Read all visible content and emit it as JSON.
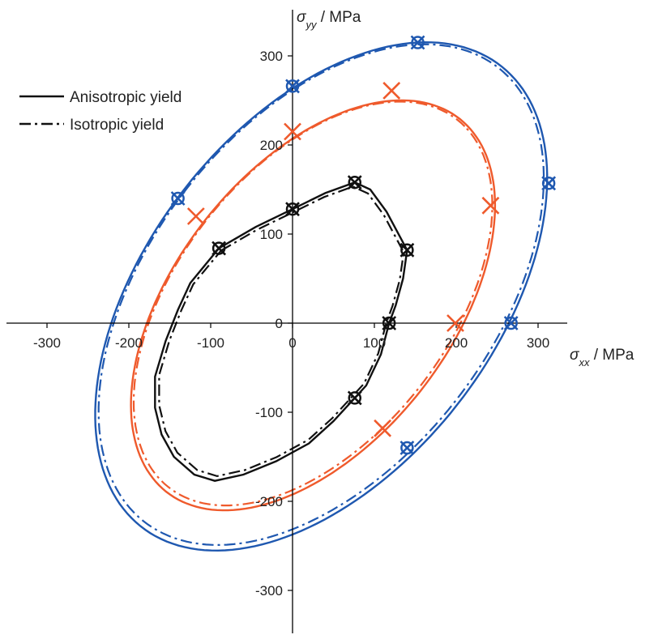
{
  "chart_data": {
    "type": "line",
    "x_axis": {
      "label_symbol": "σ",
      "label_subscript": "xx",
      "label_unit": " / MPa",
      "range": [
        -350,
        350
      ],
      "ticks": [
        -300,
        -200,
        -100,
        0,
        100,
        200,
        300
      ],
      "tick_labels": [
        "-300",
        "-200",
        "-100",
        "0",
        "100",
        "200",
        "300"
      ]
    },
    "y_axis": {
      "label_symbol": "σ",
      "label_subscript": "yy",
      "label_unit": " / MPa",
      "range": [
        -350,
        345
      ],
      "ticks": [
        -300,
        -200,
        -100,
        0,
        100,
        200,
        300
      ],
      "tick_labels": [
        "-300",
        "-200",
        "-100",
        "0",
        "100",
        "200",
        "300"
      ]
    },
    "legend": {
      "position": "top-left",
      "entries": [
        {
          "label": "Anisotropic yield",
          "style": "solid"
        },
        {
          "label": "Isotropic yield",
          "style": "dashdot"
        }
      ]
    },
    "grid": false,
    "series": [
      {
        "color": "#1f58b0",
        "ellipse": {
          "cx": 35,
          "cy": 30,
          "a": 340,
          "b": 205,
          "angle_deg": 47
        },
        "points": [
          [
            0,
            266
          ],
          [
            153,
            315
          ],
          [
            313,
            157
          ],
          [
            267,
            0
          ],
          [
            140,
            -140
          ],
          [
            -140,
            140
          ]
        ],
        "markers": [
          "circle",
          "x"
        ]
      },
      {
        "color": "#ef5a2c",
        "ellipse": {
          "cx": 25,
          "cy": 20,
          "a": 276,
          "b": 162,
          "angle_deg": 47
        },
        "points": [
          [
            0,
            215
          ],
          [
            121,
            261
          ],
          [
            242,
            132
          ],
          [
            199,
            0
          ],
          [
            110,
            -118
          ],
          [
            -118,
            120
          ]
        ],
        "markers": [
          "x"
        ]
      },
      {
        "color": "#111111",
        "points": [
          [
            -90,
            84
          ],
          [
            0,
            128
          ],
          [
            76,
            158
          ],
          [
            140,
            82
          ],
          [
            118,
            0
          ],
          [
            76,
            -84
          ]
        ],
        "markers": [
          "circle",
          "x"
        ],
        "outline": [
          [
            -90,
            84
          ],
          [
            -45,
            108
          ],
          [
            0,
            128
          ],
          [
            40,
            146
          ],
          [
            76,
            158
          ],
          [
            95,
            150
          ],
          [
            115,
            125
          ],
          [
            140,
            82
          ],
          [
            135,
            50
          ],
          [
            126,
            20
          ],
          [
            118,
            0
          ],
          [
            108,
            -35
          ],
          [
            90,
            -70
          ],
          [
            76,
            -84
          ],
          [
            50,
            -110
          ],
          [
            20,
            -135
          ],
          [
            -20,
            -155
          ],
          [
            -60,
            -170
          ],
          [
            -95,
            -177
          ],
          [
            -120,
            -170
          ],
          [
            -145,
            -150
          ],
          [
            -160,
            -125
          ],
          [
            -168,
            -95
          ],
          [
            -168,
            -60
          ],
          [
            -155,
            -20
          ],
          [
            -140,
            15
          ],
          [
            -125,
            45
          ],
          [
            -90,
            84
          ]
        ]
      }
    ]
  }
}
